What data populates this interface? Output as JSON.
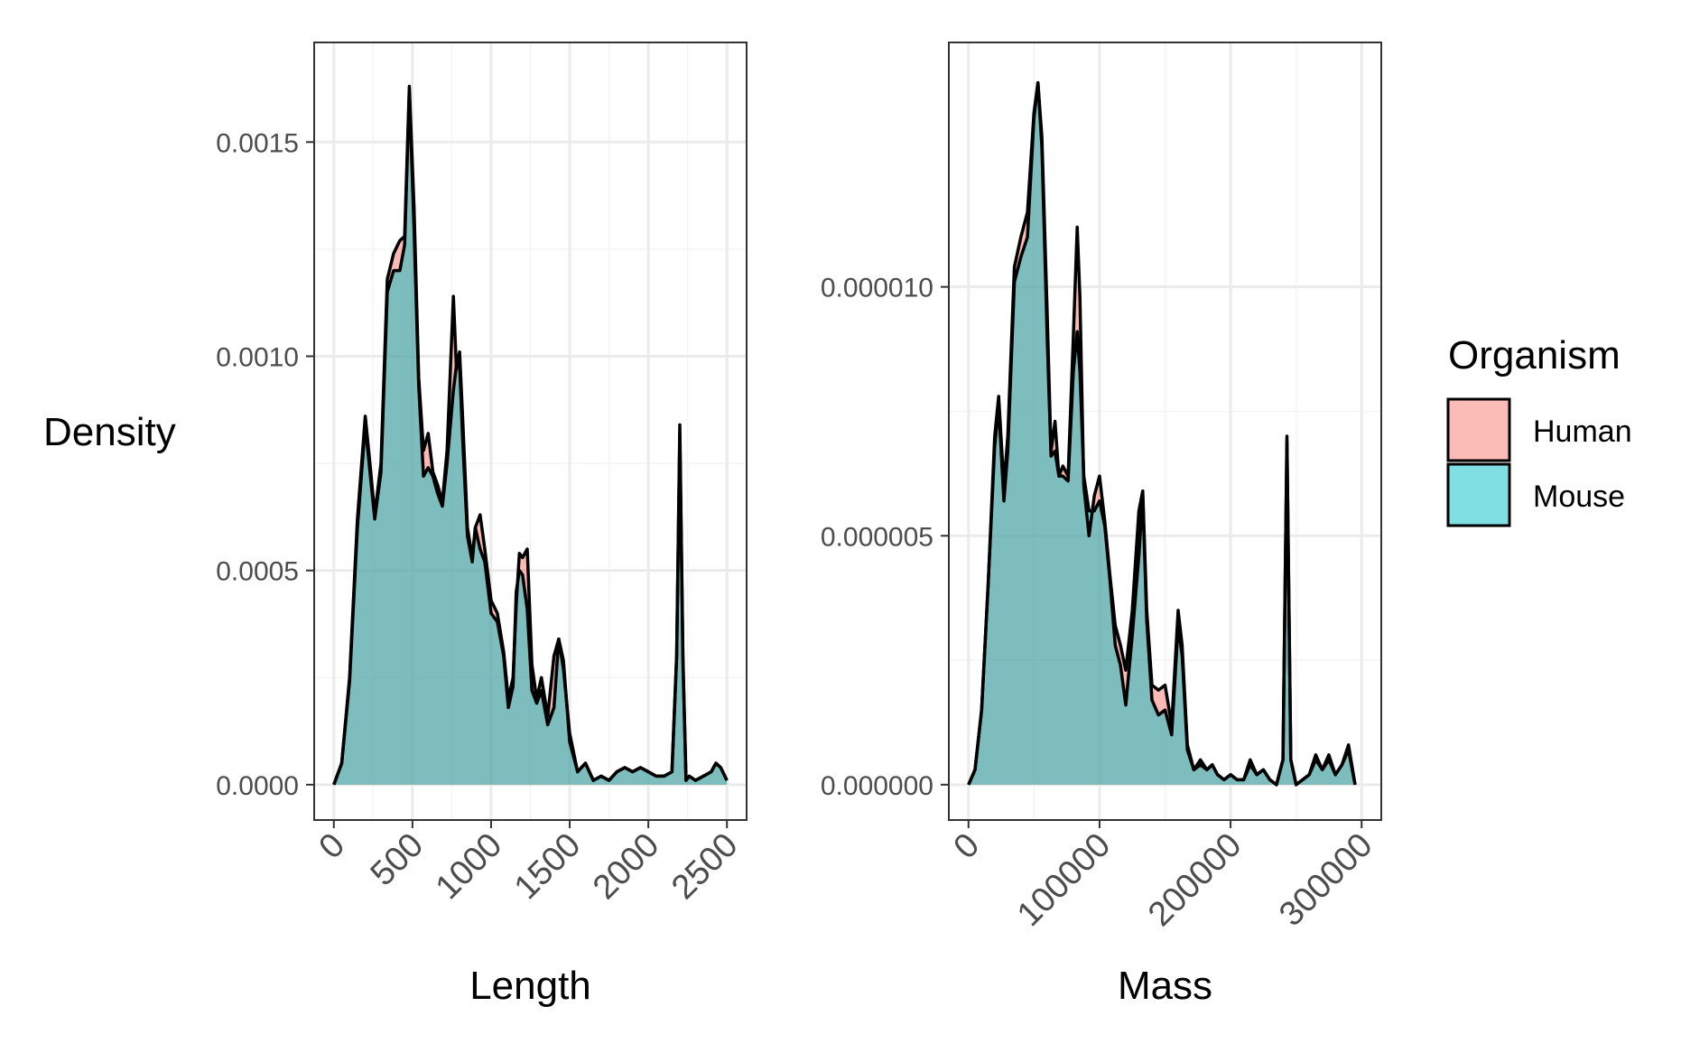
{
  "legend": {
    "title": "Organism",
    "items": [
      {
        "label": "Human",
        "fill": "#F8766D",
        "fill_alpha": 0.5
      },
      {
        "label": "Mouse",
        "fill": "#00BFC4",
        "fill_alpha": 0.5
      }
    ]
  },
  "y_title": "Density",
  "colors": {
    "panel_border": "#333333",
    "grid_major": "#ebebeb",
    "grid_minor": "#f4f4f4",
    "outline": "#000000",
    "overlap_fill": "#7fbfbf"
  },
  "chart_data": [
    {
      "type": "area",
      "subtype": "density",
      "title": "",
      "xlabel": "Length",
      "ylabel": "Density",
      "xlim": [
        -125,
        2625
      ],
      "ylim": [
        -8.25e-05,
        0.0017325
      ],
      "x_ticks": [
        0,
        500,
        1000,
        1500,
        2000,
        2500
      ],
      "x_tick_labels": [
        "0",
        "500",
        "1000",
        "1500",
        "2000",
        "2500"
      ],
      "y_ticks": [
        0,
        0.0005,
        0.001,
        0.0015
      ],
      "y_tick_labels": [
        "0.0000",
        "0.0005",
        "0.0010",
        "0.0015"
      ],
      "grid": true,
      "legend_position": "right",
      "series": [
        {
          "name": "Human",
          "x": [
            0,
            50,
            100,
            150,
            200,
            230,
            260,
            300,
            340,
            380,
            420,
            450,
            480,
            510,
            540,
            570,
            600,
            630,
            660,
            690,
            720,
            760,
            780,
            800,
            820,
            850,
            880,
            900,
            930,
            960,
            1000,
            1040,
            1080,
            1110,
            1140,
            1160,
            1180,
            1200,
            1230,
            1260,
            1290,
            1320,
            1360,
            1400,
            1430,
            1460,
            1500,
            1550,
            1600,
            1650,
            1700,
            1750,
            1800,
            1850,
            1900,
            1950,
            2000,
            2050,
            2100,
            2150,
            2180,
            2200,
            2220,
            2240,
            2260,
            2300,
            2350,
            2400,
            2430,
            2460,
            2500
          ],
          "y": [
            0,
            5e-05,
            0.00025,
            0.00062,
            0.00086,
            0.00075,
            0.00063,
            0.00075,
            0.00118,
            0.00124,
            0.00127,
            0.00128,
            0.00163,
            0.00135,
            0.00095,
            0.00078,
            0.00082,
            0.00073,
            0.0007,
            0.00066,
            0.00078,
            0.00114,
            0.00097,
            0.00101,
            0.00085,
            0.0006,
            0.00053,
            0.0006,
            0.00063,
            0.00055,
            0.00043,
            0.0004,
            0.00031,
            0.0002,
            0.00025,
            0.00042,
            0.00054,
            0.00053,
            0.00055,
            0.00028,
            0.0002,
            0.00025,
            0.00016,
            0.0003,
            0.00034,
            0.00027,
            0.00012,
            3e-05,
            5e-05,
            1e-05,
            2e-05,
            1e-05,
            3e-05,
            4e-05,
            3e-05,
            4e-05,
            3e-05,
            2e-05,
            2e-05,
            3e-05,
            0.0003,
            0.00084,
            0.0003,
            1e-05,
            2e-05,
            1e-05,
            2e-05,
            3e-05,
            5e-05,
            4e-05,
            1e-05
          ]
        },
        {
          "name": "Mouse",
          "x": [
            0,
            50,
            100,
            150,
            200,
            230,
            260,
            300,
            340,
            380,
            420,
            450,
            480,
            510,
            540,
            570,
            600,
            630,
            660,
            690,
            720,
            760,
            780,
            800,
            820,
            850,
            880,
            900,
            930,
            960,
            1000,
            1040,
            1080,
            1110,
            1140,
            1160,
            1180,
            1200,
            1230,
            1260,
            1290,
            1320,
            1360,
            1400,
            1430,
            1460,
            1500,
            1550,
            1600,
            1650,
            1700,
            1750,
            1800,
            1850,
            1900,
            1950,
            2000,
            2050,
            2100,
            2150,
            2180,
            2200,
            2220,
            2240,
            2260,
            2300,
            2350,
            2400,
            2430,
            2460,
            2500
          ],
          "y": [
            0,
            5e-05,
            0.00024,
            0.0006,
            0.00084,
            0.00073,
            0.00062,
            0.00073,
            0.00115,
            0.0012,
            0.0012,
            0.00126,
            0.00162,
            0.0013,
            0.00093,
            0.00072,
            0.00074,
            0.00072,
            0.00068,
            0.00065,
            0.00075,
            0.00092,
            0.00098,
            0.00098,
            0.0008,
            0.00058,
            0.00052,
            0.0006,
            0.00055,
            0.00052,
            0.0004,
            0.00038,
            0.0003,
            0.00018,
            0.00023,
            0.00045,
            0.0005,
            0.00049,
            0.00041,
            0.00022,
            0.00019,
            0.00022,
            0.00014,
            0.00018,
            0.00034,
            0.00029,
            0.0001,
            3e-05,
            5e-05,
            1e-05,
            2e-05,
            1e-05,
            3e-05,
            4e-05,
            3e-05,
            4e-05,
            3e-05,
            2e-05,
            2e-05,
            3e-05,
            0.0003,
            0.00082,
            0.00028,
            1e-05,
            2e-05,
            1e-05,
            2e-05,
            3e-05,
            5e-05,
            4e-05,
            1e-05
          ]
        }
      ]
    },
    {
      "type": "area",
      "subtype": "density",
      "title": "",
      "xlabel": "Mass",
      "ylabel": "Density",
      "xlim": [
        -15000,
        315000
      ],
      "ylim": [
        -7.1e-07,
        1.491e-05
      ],
      "x_ticks": [
        0,
        100000,
        200000,
        300000
      ],
      "x_tick_labels": [
        "0",
        "100000",
        "200000",
        "300000"
      ],
      "y_ticks": [
        0,
        5e-06,
        1e-05
      ],
      "y_tick_labels": [
        "0.000000",
        "0.000005",
        "0.000010"
      ],
      "grid": true,
      "legend_position": "right",
      "series": [
        {
          "name": "Human",
          "x": [
            0,
            5000,
            10000,
            15000,
            20000,
            23000,
            27000,
            30000,
            35000,
            40000,
            45000,
            50000,
            53000,
            56000,
            60000,
            63000,
            66000,
            69000,
            72000,
            76000,
            80000,
            83000,
            85000,
            88000,
            92000,
            96000,
            100000,
            104000,
            108000,
            112000,
            116000,
            120000,
            125000,
            130000,
            133000,
            136000,
            140000,
            145000,
            150000,
            155000,
            160000,
            163000,
            167000,
            172000,
            177000,
            182000,
            186000,
            190000,
            195000,
            200000,
            205000,
            210000,
            215000,
            220000,
            225000,
            230000,
            235000,
            240000,
            243000,
            246000,
            250000,
            255000,
            260000,
            265000,
            270000,
            275000,
            280000,
            285000,
            290000,
            295000
          ],
          "y": [
            0,
            3e-07,
            1.5e-06,
            4e-06,
            7e-06,
            7.8e-06,
            6e-06,
            7e-06,
            1.04e-05,
            1.1e-05,
            1.15e-05,
            1.35e-05,
            1.41e-05,
            1.3e-05,
            9.5e-06,
            6.7e-06,
            7.3e-06,
            6.2e-06,
            6.4e-06,
            6.2e-06,
            9e-06,
            1.12e-05,
            9.8e-06,
            6e-06,
            5e-06,
            5.8e-06,
            6.2e-06,
            5.3e-06,
            4.2e-06,
            3.2e-06,
            2.8e-06,
            2.3e-06,
            3.5e-06,
            5.5e-06,
            5.9e-06,
            3.5e-06,
            2e-06,
            1.9e-06,
            2e-06,
            1.2e-06,
            3.5e-06,
            2.8e-06,
            8e-07,
            3e-07,
            5e-07,
            3e-07,
            4e-07,
            2e-07,
            1e-07,
            2e-07,
            1e-07,
            1e-07,
            5e-07,
            2e-07,
            3e-07,
            1e-07,
            0.0,
            5e-07,
            7e-06,
            5e-07,
            0.0,
            1e-07,
            2e-07,
            6e-07,
            3e-07,
            6e-07,
            2e-07,
            4e-07,
            8e-07,
            0.0
          ]
        },
        {
          "name": "Mouse",
          "x": [
            0,
            5000,
            10000,
            15000,
            20000,
            23000,
            27000,
            30000,
            35000,
            40000,
            45000,
            50000,
            53000,
            56000,
            60000,
            63000,
            66000,
            69000,
            72000,
            76000,
            80000,
            83000,
            85000,
            88000,
            92000,
            96000,
            100000,
            104000,
            108000,
            112000,
            116000,
            120000,
            125000,
            130000,
            133000,
            136000,
            140000,
            145000,
            150000,
            155000,
            160000,
            163000,
            167000,
            172000,
            177000,
            182000,
            186000,
            190000,
            195000,
            200000,
            205000,
            210000,
            215000,
            220000,
            225000,
            230000,
            235000,
            240000,
            243000,
            246000,
            250000,
            255000,
            260000,
            265000,
            270000,
            275000,
            280000,
            285000,
            290000,
            295000
          ],
          "y": [
            0,
            3e-07,
            1.5e-06,
            4e-06,
            6.8e-06,
            7.6e-06,
            5.7e-06,
            6.7e-06,
            1.01e-05,
            1.06e-05,
            1.1e-05,
            1.34e-05,
            1.41e-05,
            1.28e-05,
            9e-06,
            6.6e-06,
            6.7e-06,
            6.2e-06,
            6.2e-06,
            6.1e-06,
            8.3e-06,
            9.1e-06,
            8.3e-06,
            6.2e-06,
            5.5e-06,
            5.5e-06,
            5.7e-06,
            5.2e-06,
            4.1e-06,
            2.8e-06,
            2.4e-06,
            1.6e-06,
            3e-06,
            4.6e-06,
            5.8e-06,
            3.3e-06,
            1.7e-06,
            1.4e-06,
            1.5e-06,
            1e-06,
            3.2e-06,
            2.6e-06,
            7e-07,
            3e-07,
            4e-07,
            3e-07,
            4e-07,
            2e-07,
            1e-07,
            2e-07,
            1e-07,
            1e-07,
            4e-07,
            2e-07,
            3e-07,
            1e-07,
            0.0,
            5e-07,
            6.9e-06,
            5e-07,
            0.0,
            1e-07,
            2e-07,
            5e-07,
            3e-07,
            5e-07,
            2e-07,
            4e-07,
            7e-07,
            0.0
          ]
        }
      ]
    }
  ]
}
